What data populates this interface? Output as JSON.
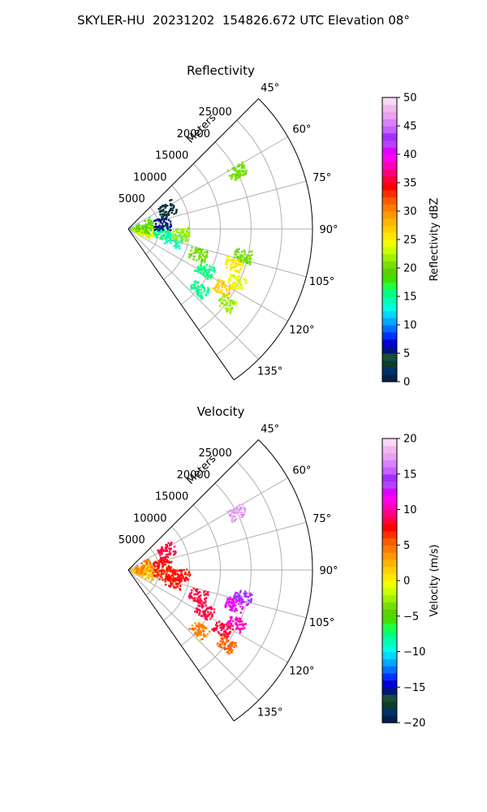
{
  "figure_title": "SKYLER-HU  20231202  154826.672 UTC Elevation 08°",
  "chart_data": [
    {
      "type": "heatmap",
      "subtype": "polar-sector-ppi",
      "title": "Reflectivity",
      "range_axis_label": "Meters",
      "range_ticks": [
        5000,
        10000,
        15000,
        20000,
        25000
      ],
      "range_tick_labels": [
        "5000",
        "10000",
        "15000",
        "20000",
        "25000"
      ],
      "range_max": 30000,
      "azimuth_range_deg": [
        45,
        145
      ],
      "azimuth_ticks": [
        45,
        60,
        75,
        90,
        105,
        120,
        135
      ],
      "azimuth_tick_labels": [
        "45°",
        "60°",
        "75°",
        "90°",
        "105°",
        "120°",
        "135°"
      ],
      "grid": true,
      "colorbar": {
        "label": "Reflectivity dBZ",
        "range": [
          0,
          50
        ],
        "ticks": [
          0,
          5,
          10,
          15,
          20,
          25,
          30,
          35,
          40,
          45,
          50
        ],
        "tick_labels": [
          "0",
          "5",
          "10",
          "15",
          "20",
          "25",
          "30",
          "35",
          "40",
          "45",
          "50"
        ],
        "colors": [
          "#00204c",
          "#00306a",
          "#0a3d2c",
          "#164f3a",
          "#00137f",
          "#0000d8",
          "#0030ff",
          "#0070ff",
          "#00a8ff",
          "#00d8ff",
          "#00ffe0",
          "#00ffb0",
          "#00ff80",
          "#22ff40",
          "#44e000",
          "#5ad200",
          "#78e000",
          "#a0f000",
          "#ccff00",
          "#f0ff00",
          "#ffe800",
          "#ffd000",
          "#ffb400",
          "#ff9a00",
          "#ff7a00",
          "#ff5a00",
          "#ff3000",
          "#ff0000",
          "#ff0040",
          "#ff0080",
          "#ff00c0",
          "#ff00f0",
          "#e000ff",
          "#b840ff",
          "#a030ff",
          "#c860ff",
          "#d880ff",
          "#e8a0f0",
          "#f0b8ec",
          "#f8d8f4"
        ],
        "location": "right"
      },
      "echo_cells": [
        {
          "range_m": 2000,
          "azimuth_deg": 90,
          "value": 22
        },
        {
          "range_m": 2800,
          "azimuth_deg": 96,
          "value": 24
        },
        {
          "range_m": 2600,
          "azimuth_deg": 80,
          "value": 19
        },
        {
          "range_m": 5500,
          "azimuth_deg": 95,
          "value": 16
        },
        {
          "range_m": 7500,
          "azimuth_deg": 103,
          "value": 14
        },
        {
          "range_m": 8500,
          "azimuth_deg": 95,
          "value": 22
        },
        {
          "range_m": 5600,
          "azimuth_deg": 80,
          "value": 6
        },
        {
          "range_m": 7000,
          "azimuth_deg": 62,
          "value": 3
        },
        {
          "range_m": 12000,
          "azimuth_deg": 110,
          "value": 20
        },
        {
          "range_m": 14000,
          "azimuth_deg": 118,
          "value": 16
        },
        {
          "range_m": 19000,
          "azimuth_deg": 103,
          "value": 20
        },
        {
          "range_m": 18000,
          "azimuth_deg": 108,
          "value": 26
        },
        {
          "range_m": 19500,
          "azimuth_deg": 116,
          "value": 24
        },
        {
          "range_m": 18000,
          "azimuth_deg": 122,
          "value": 27
        },
        {
          "range_m": 20000,
          "azimuth_deg": 127,
          "value": 22
        },
        {
          "range_m": 20000,
          "azimuth_deg": 62,
          "value": 20
        },
        {
          "range_m": 15000,
          "azimuth_deg": 130,
          "value": 15
        }
      ]
    },
    {
      "type": "heatmap",
      "subtype": "polar-sector-ppi",
      "title": "Velocity",
      "range_axis_label": "Meters",
      "range_ticks": [
        5000,
        10000,
        15000,
        20000,
        25000
      ],
      "range_tick_labels": [
        "5000",
        "10000",
        "15000",
        "20000",
        "25000"
      ],
      "range_max": 30000,
      "azimuth_range_deg": [
        45,
        145
      ],
      "azimuth_ticks": [
        45,
        60,
        75,
        90,
        105,
        120,
        135
      ],
      "azimuth_tick_labels": [
        "45°",
        "60°",
        "75°",
        "90°",
        "105°",
        "120°",
        "135°"
      ],
      "grid": true,
      "colorbar": {
        "label": "Velocity (m/s)",
        "range": [
          -20,
          20
        ],
        "ticks": [
          -20,
          -15,
          -10,
          -5,
          0,
          5,
          10,
          15,
          20
        ],
        "tick_labels": [
          "−20",
          "−15",
          "−10",
          "−5",
          "0",
          "5",
          "10",
          "15",
          "20"
        ],
        "colors": [
          "#00204c",
          "#00306a",
          "#0a3d2c",
          "#164f3a",
          "#00137f",
          "#0000d8",
          "#0030ff",
          "#0070ff",
          "#00a8ff",
          "#00d8ff",
          "#00ffe0",
          "#00ffb0",
          "#00ff80",
          "#22ff40",
          "#44e000",
          "#5ad200",
          "#78e000",
          "#a0f000",
          "#ccff00",
          "#f0ff00",
          "#ffe800",
          "#ffd000",
          "#ffb400",
          "#ff9a00",
          "#ff7a00",
          "#ff5a00",
          "#ff3000",
          "#ff0000",
          "#ff0040",
          "#ff0080",
          "#ff00c0",
          "#ff00f0",
          "#e000ff",
          "#b840ff",
          "#a030ff",
          "#c860ff",
          "#d880ff",
          "#e8a0f0",
          "#f0b8ec",
          "#f8d8f4"
        ],
        "location": "right"
      },
      "echo_cells": [
        {
          "range_m": 2000,
          "azimuth_deg": 90,
          "value": 1
        },
        {
          "range_m": 2800,
          "azimuth_deg": 96,
          "value": 2
        },
        {
          "range_m": 2600,
          "azimuth_deg": 80,
          "value": 4
        },
        {
          "range_m": 5500,
          "azimuth_deg": 95,
          "value": 6
        },
        {
          "range_m": 7500,
          "azimuth_deg": 103,
          "value": 7
        },
        {
          "range_m": 8500,
          "azimuth_deg": 95,
          "value": 7
        },
        {
          "range_m": 5600,
          "azimuth_deg": 80,
          "value": 7
        },
        {
          "range_m": 7000,
          "azimuth_deg": 62,
          "value": 8
        },
        {
          "range_m": 12000,
          "azimuth_deg": 110,
          "value": 8
        },
        {
          "range_m": 14000,
          "azimuth_deg": 118,
          "value": 8
        },
        {
          "range_m": 19000,
          "azimuth_deg": 103,
          "value": 14
        },
        {
          "range_m": 18000,
          "azimuth_deg": 108,
          "value": 12
        },
        {
          "range_m": 19500,
          "azimuth_deg": 116,
          "value": 10
        },
        {
          "range_m": 18000,
          "azimuth_deg": 122,
          "value": 8
        },
        {
          "range_m": 20000,
          "azimuth_deg": 127,
          "value": 5
        },
        {
          "range_m": 20000,
          "azimuth_deg": 62,
          "value": 17
        },
        {
          "range_m": 15000,
          "azimuth_deg": 130,
          "value": 4
        }
      ]
    }
  ]
}
